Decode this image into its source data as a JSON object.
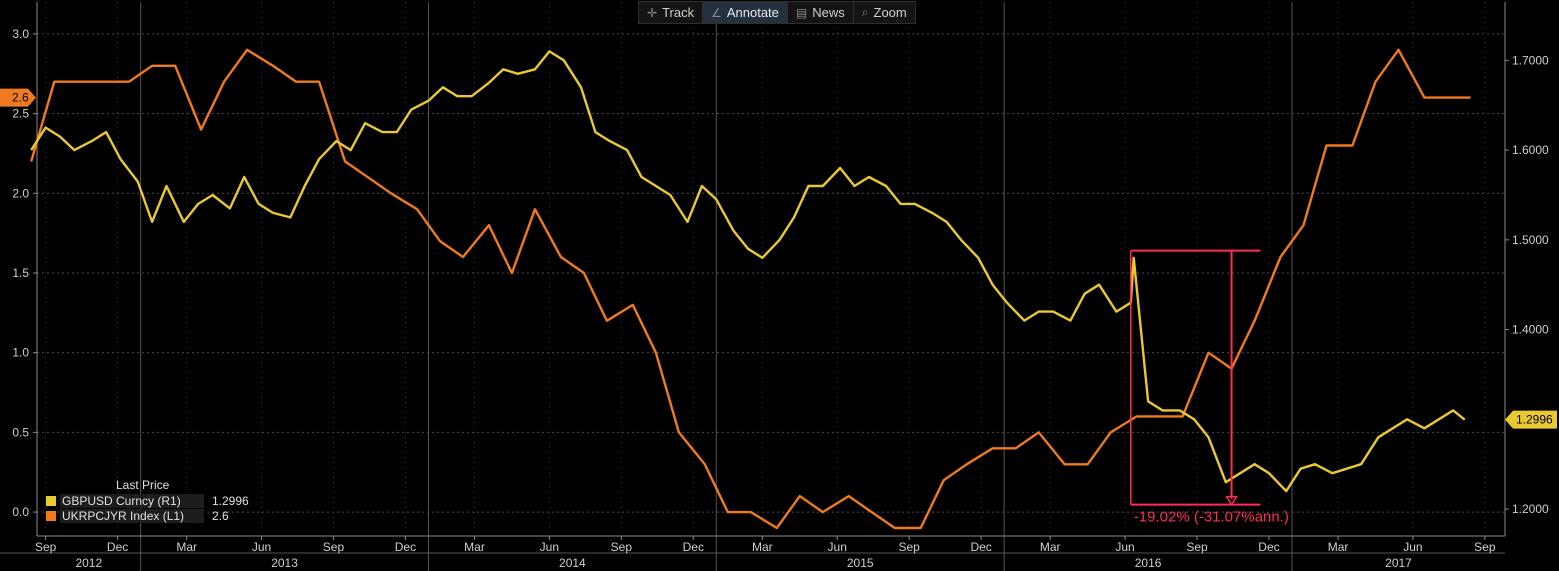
{
  "toolbar": {
    "items": [
      {
        "label": "Track",
        "icon": "crosshair-icon",
        "active": false
      },
      {
        "label": "Annotate",
        "icon": "pencil-icon",
        "active": true
      },
      {
        "label": "News",
        "icon": "news-icon",
        "active": false
      },
      {
        "label": "Zoom",
        "icon": "magnifier-icon",
        "active": false
      }
    ]
  },
  "legend": {
    "header": "Last Price",
    "entries": [
      {
        "name": "GBPUSD Curncy  (R1)",
        "value": "1.2996",
        "color": "#e8c930"
      },
      {
        "name": "UKRPCJYR Index  (L1)",
        "value": "2.6",
        "color": "#f07a1e"
      }
    ]
  },
  "annotation": {
    "label": "-19.02% (-31.07%ann.)",
    "color": "#ff2d55",
    "start": {
      "x": 2016.44,
      "y": 1.488
    },
    "end": {
      "x": 2016.79,
      "y": 1.205
    }
  },
  "chart_data": {
    "type": "line",
    "x_axis": {
      "range": [
        2012.64,
        2017.74
      ],
      "month_ticks": [
        {
          "label": "Sep",
          "x": 2012.67
        },
        {
          "label": "Dec",
          "x": 2012.92
        },
        {
          "label": "Mar",
          "x": 2013.16
        },
        {
          "label": "Jun",
          "x": 2013.42
        },
        {
          "label": "Sep",
          "x": 2013.67
        },
        {
          "label": "Dec",
          "x": 2013.92
        },
        {
          "label": "Mar",
          "x": 2014.16
        },
        {
          "label": "Jun",
          "x": 2014.42
        },
        {
          "label": "Sep",
          "x": 2014.67
        },
        {
          "label": "Dec",
          "x": 2014.92
        },
        {
          "label": "Mar",
          "x": 2015.16
        },
        {
          "label": "Jun",
          "x": 2015.42
        },
        {
          "label": "Sep",
          "x": 2015.67
        },
        {
          "label": "Dec",
          "x": 2015.92
        },
        {
          "label": "Mar",
          "x": 2016.16
        },
        {
          "label": "Jun",
          "x": 2016.42
        },
        {
          "label": "Sep",
          "x": 2016.67
        },
        {
          "label": "Dec",
          "x": 2016.92
        },
        {
          "label": "Mar",
          "x": 2017.16
        },
        {
          "label": "Jun",
          "x": 2017.42
        },
        {
          "label": "Sep",
          "x": 2017.67
        }
      ],
      "years": [
        {
          "label": "2012",
          "x": 2012.82
        },
        {
          "label": "2013",
          "x": 2013.5
        },
        {
          "label": "2014",
          "x": 2014.5
        },
        {
          "label": "2015",
          "x": 2015.5
        },
        {
          "label": "2016",
          "x": 2016.5
        },
        {
          "label": "2017",
          "x": 2017.37
        }
      ],
      "year_boundaries": [
        2013.0,
        2014.0,
        2015.0,
        2016.0,
        2017.0
      ]
    },
    "left_axis": {
      "range": [
        -0.15,
        3.2
      ],
      "ticks": [
        {
          "v": 0.0,
          "label": "0.0"
        },
        {
          "v": 0.5,
          "label": "0.5"
        },
        {
          "v": 1.0,
          "label": "1.0"
        },
        {
          "v": 1.5,
          "label": "1.5"
        },
        {
          "v": 2.0,
          "label": "2.0"
        },
        {
          "v": 2.5,
          "label": "2.5"
        },
        {
          "v": 3.0,
          "label": "3.0"
        }
      ],
      "last_value_label": "2.6",
      "last_value": 2.6
    },
    "right_axis": {
      "range": [
        1.17,
        1.765
      ],
      "ticks": [
        {
          "v": 1.2,
          "label": "1.2000"
        },
        {
          "v": 1.3,
          "label": "1.3000"
        },
        {
          "v": 1.4,
          "label": "1.4000"
        },
        {
          "v": 1.5,
          "label": "1.5000"
        },
        {
          "v": 1.6,
          "label": "1.6000"
        },
        {
          "v": 1.7,
          "label": "1.7000"
        }
      ],
      "last_value_label": "1.2996",
      "last_value": 1.2996
    },
    "grid": true,
    "series": [
      {
        "name": "UKRPCJYR Index  (L1)",
        "axis": "left",
        "color": "#f07a1e",
        "x": [
          2012.62,
          2012.7,
          2012.79,
          2012.87,
          2012.96,
          2013.04,
          2013.12,
          2013.21,
          2013.29,
          2013.37,
          2013.46,
          2013.54,
          2013.62,
          2013.71,
          2013.79,
          2013.87,
          2013.96,
          2014.04,
          2014.12,
          2014.21,
          2014.29,
          2014.37,
          2014.46,
          2014.54,
          2014.62,
          2014.71,
          2014.79,
          2014.87,
          2014.96,
          2015.04,
          2015.12,
          2015.21,
          2015.29,
          2015.37,
          2015.46,
          2015.54,
          2015.62,
          2015.71,
          2015.79,
          2015.87,
          2015.96,
          2016.04,
          2016.12,
          2016.21,
          2016.29,
          2016.37,
          2016.46,
          2016.54,
          2016.62,
          2016.71,
          2016.79,
          2016.87,
          2016.96,
          2017.04,
          2017.12,
          2017.21,
          2017.29,
          2017.37,
          2017.46,
          2017.54,
          2017.62
        ],
        "y": [
          2.2,
          2.7,
          2.7,
          2.7,
          2.7,
          2.8,
          2.8,
          2.4,
          2.7,
          2.9,
          2.8,
          2.7,
          2.7,
          2.2,
          2.1,
          2.0,
          1.9,
          1.7,
          1.6,
          1.8,
          1.5,
          1.9,
          1.6,
          1.5,
          1.2,
          1.3,
          1.0,
          0.5,
          0.3,
          0.0,
          0.0,
          -0.1,
          0.1,
          0.0,
          0.1,
          0.0,
          -0.1,
          -0.1,
          0.2,
          0.3,
          0.4,
          0.4,
          0.5,
          0.3,
          0.3,
          0.5,
          0.6,
          0.6,
          0.6,
          1.0,
          0.9,
          1.2,
          1.6,
          1.8,
          2.3,
          2.3,
          2.7,
          2.9,
          2.6,
          2.6,
          2.6
        ]
      },
      {
        "name": "GBPUSD Curncy  (R1)",
        "axis": "right",
        "color": "#e8c930",
        "x": [
          2012.62,
          2012.67,
          2012.72,
          2012.77,
          2012.83,
          2012.88,
          2012.93,
          2012.99,
          2013.04,
          2013.09,
          2013.15,
          2013.2,
          2013.25,
          2013.31,
          2013.36,
          2013.41,
          2013.46,
          2013.52,
          2013.57,
          2013.62,
          2013.68,
          2013.73,
          2013.78,
          2013.84,
          2013.89,
          2013.94,
          2014.0,
          2014.05,
          2014.1,
          2014.15,
          2014.21,
          2014.26,
          2014.31,
          2014.37,
          2014.42,
          2014.47,
          2014.53,
          2014.58,
          2014.63,
          2014.69,
          2014.74,
          2014.79,
          2014.84,
          2014.9,
          2014.95,
          2015.0,
          2015.06,
          2015.11,
          2015.16,
          2015.22,
          2015.27,
          2015.32,
          2015.37,
          2015.43,
          2015.48,
          2015.53,
          2015.59,
          2015.64,
          2015.69,
          2015.75,
          2015.8,
          2015.85,
          2015.91,
          2015.96,
          2016.01,
          2016.07,
          2016.12,
          2016.17,
          2016.23,
          2016.28,
          2016.33,
          2016.39,
          2016.44,
          2016.45,
          2016.5,
          2016.55,
          2016.61,
          2016.66,
          2016.71,
          2016.77,
          2016.82,
          2016.87,
          2016.92,
          2016.98,
          2017.03,
          2017.08,
          2017.14,
          2017.19,
          2017.24,
          2017.3,
          2017.35,
          2017.4,
          2017.46,
          2017.51,
          2017.56,
          2017.6
        ],
        "y": [
          1.6,
          1.625,
          1.615,
          1.6,
          1.61,
          1.62,
          1.59,
          1.565,
          1.52,
          1.56,
          1.52,
          1.54,
          1.55,
          1.535,
          1.57,
          1.54,
          1.53,
          1.525,
          1.56,
          1.59,
          1.61,
          1.6,
          1.63,
          1.62,
          1.62,
          1.645,
          1.655,
          1.67,
          1.66,
          1.66,
          1.675,
          1.69,
          1.685,
          1.69,
          1.71,
          1.7,
          1.67,
          1.62,
          1.61,
          1.6,
          1.57,
          1.56,
          1.55,
          1.52,
          1.56,
          1.545,
          1.51,
          1.49,
          1.48,
          1.5,
          1.525,
          1.56,
          1.56,
          1.58,
          1.56,
          1.57,
          1.56,
          1.54,
          1.54,
          1.53,
          1.52,
          1.5,
          1.48,
          1.45,
          1.43,
          1.41,
          1.42,
          1.42,
          1.41,
          1.44,
          1.45,
          1.42,
          1.43,
          1.48,
          1.32,
          1.31,
          1.31,
          1.3,
          1.28,
          1.23,
          1.24,
          1.25,
          1.24,
          1.22,
          1.245,
          1.25,
          1.24,
          1.245,
          1.25,
          1.28,
          1.29,
          1.3,
          1.29,
          1.3,
          1.31,
          1.2996
        ]
      }
    ]
  }
}
